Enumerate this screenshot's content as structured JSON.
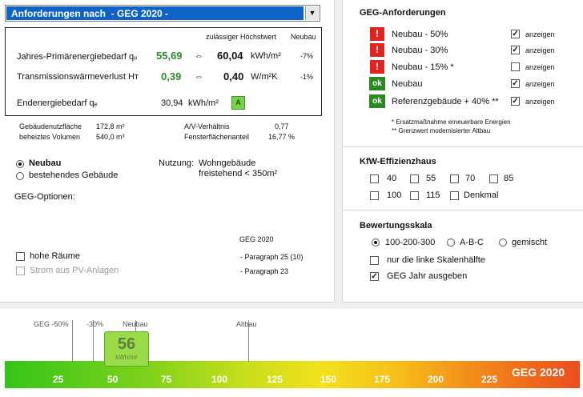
{
  "combo": {
    "label": "Anforderungen nach  - GEG 2020 -"
  },
  "values": {
    "hdr_allowed": "zulässiger Höchstwert",
    "hdr_new": "Neubau",
    "rows": [
      {
        "label": "Jahres-Primärenergiebedarf qₚ",
        "value": "55,69",
        "symbol": "⇔",
        "max": "60,04",
        "unit": "kWh/m²",
        "pct": "-7%"
      },
      {
        "label": "Transmissionswärmeverlust Hᴛ",
        "value": "0,39",
        "symbol": "⇔",
        "max": "0,40",
        "unit": "W/m²K",
        "pct": "-1%"
      }
    ],
    "end_label": "Endenergiebedarf qₑ",
    "end_value": "30,94",
    "end_unit": "kWh/m²",
    "end_class": "A"
  },
  "building": {
    "area_label": "Gebäudenutzfläche",
    "area_value": "172,8 m²",
    "vol_label": "beheiztes Volumen",
    "vol_value": "540,0 m³",
    "av_label": "A/V-Verhältnis",
    "av_value": "0,77",
    "win_label": "Fensterflächenanteil",
    "win_value": "16,77 %"
  },
  "type": {
    "opt_new": "Neubau",
    "opt_existing": "bestehendes Gebäude",
    "use_label": "Nutzung:",
    "use_line1": "Wohngebäude",
    "use_line2": "freistehend < 350m²"
  },
  "options": {
    "title": "GEG-Optionen:",
    "geg_hdr": "GEG 2020",
    "item1": "hohe Räume",
    "item1_para": "- Paragraph 25 (10)",
    "item2": "Strom aus PV-Anlagen",
    "item2_para": "- Paragraph 23"
  },
  "geg_req": {
    "title": "GEG-Anforderungen",
    "show_label": "anzeigen",
    "items": [
      {
        "badge": "!",
        "label": "Neubau - 50%",
        "checked": "✓"
      },
      {
        "badge": "!",
        "label": "Neubau - 30%",
        "checked": "✓"
      },
      {
        "badge": "!",
        "label": "Neubau - 15% *",
        "checked": ""
      },
      {
        "badge": "ok",
        "label": "Neubau",
        "checked": "✓"
      },
      {
        "badge": "ok",
        "label": "Referenzgebäude + 40% **",
        "checked": "✓"
      }
    ],
    "note1": "*  Ersatzmaßnahme erneuerbare Energien",
    "note2": "** Grenzwert modernisierter Altbau"
  },
  "kfw": {
    "title": "KfW-Effizienzhaus",
    "row1": [
      "40",
      "55",
      "70",
      "85"
    ],
    "row2": [
      "100",
      "115",
      "Denkmal"
    ]
  },
  "rating": {
    "title": "Bewertungsskala",
    "options": [
      "100-200-300",
      "A-B-C",
      "gemischt"
    ],
    "chk1": "nur die linke Skalenhälfte",
    "chk2": "GEG Jahr ausgeben",
    "chk2_mark": "✓"
  },
  "scale": {
    "top_labels": [
      "GEG -50%",
      "-30%",
      "Neubau",
      "Altbau"
    ],
    "numbers": [
      "25",
      "50",
      "75",
      "100",
      "125",
      "150",
      "175",
      "200",
      "225"
    ],
    "title": "GEG 2020",
    "marker_value": "56",
    "marker_unit": "kWh/m²"
  },
  "colors": {
    "accent": "#0f63c8",
    "bad": "#e0231f",
    "good": "#2a8a22"
  }
}
